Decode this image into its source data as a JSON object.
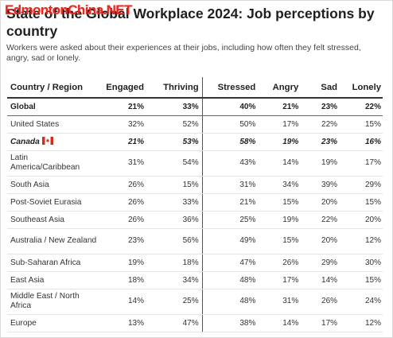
{
  "watermark": "EdmontonChina.NET",
  "title": "State of the Global Workplace 2024: Job perceptions by country",
  "subtitle": "Workers were asked about their experiences at their jobs, including how often they felt stressed, angry, sad or lonely.",
  "columns": [
    "Country / Region",
    "Engaged",
    "Thriving",
    "Stressed",
    "Angry",
    "Sad",
    "Lonely"
  ],
  "colors": {
    "flag_red": "#d52b1e",
    "rule": "#333333",
    "row_border": "#e4e4e4"
  },
  "rows": [
    {
      "region": "Global",
      "values": [
        "21%",
        "33%",
        "40%",
        "21%",
        "23%",
        "22%"
      ],
      "style": "global"
    },
    {
      "region": "United States",
      "values": [
        "32%",
        "52%",
        "50%",
        "17%",
        "22%",
        "15%"
      ]
    },
    {
      "region": "Canada",
      "flag": "canada-flag-icon",
      "values": [
        "21%",
        "53%",
        "58%",
        "19%",
        "23%",
        "16%"
      ],
      "style": "canada"
    },
    {
      "region": "Latin America/Caribbean",
      "values": [
        "31%",
        "54%",
        "43%",
        "14%",
        "19%",
        "17%"
      ],
      "tall": true
    },
    {
      "region": "South Asia",
      "values": [
        "26%",
        "15%",
        "31%",
        "34%",
        "39%",
        "29%"
      ]
    },
    {
      "region": "Post-Soviet Eurasia",
      "values": [
        "26%",
        "33%",
        "21%",
        "15%",
        "20%",
        "15%"
      ]
    },
    {
      "region": "Southeast Asia",
      "values": [
        "26%",
        "36%",
        "25%",
        "19%",
        "22%",
        "20%"
      ]
    },
    {
      "region": "Australia / New Zealand",
      "values": [
        "23%",
        "56%",
        "49%",
        "15%",
        "20%",
        "12%"
      ],
      "tall": true
    },
    {
      "region": "Sub-Saharan Africa",
      "values": [
        "19%",
        "18%",
        "47%",
        "26%",
        "29%",
        "30%"
      ]
    },
    {
      "region": "East Asia",
      "values": [
        "18%",
        "34%",
        "48%",
        "17%",
        "14%",
        "15%"
      ]
    },
    {
      "region": "Middle East / North Africa",
      "values": [
        "14%",
        "25%",
        "48%",
        "31%",
        "26%",
        "24%"
      ],
      "tall": true
    },
    {
      "region": "Europe",
      "values": [
        "13%",
        "47%",
        "38%",
        "14%",
        "17%",
        "12%"
      ]
    }
  ]
}
